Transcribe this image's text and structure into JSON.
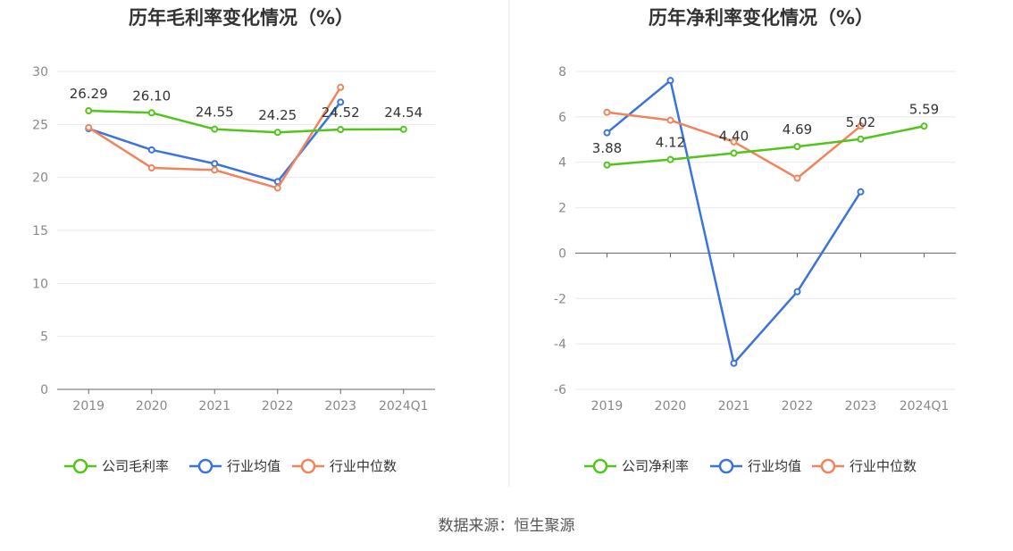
{
  "colors": {
    "company": "#52c41a",
    "industry_avg": "#3b73db",
    "industry_median": "#f0845c",
    "grid": "#e6e9f0",
    "axis": "#666666",
    "tick_text": "#888888",
    "title_text": "#333333",
    "label_text": "#333333"
  },
  "source_text": "数据来源：恒生聚源",
  "chart_data": [
    {
      "type": "line",
      "title": "历年毛利率变化情况（%）",
      "categories": [
        "2019",
        "2020",
        "2021",
        "2022",
        "2023",
        "2024Q1"
      ],
      "ylim": [
        0,
        30
      ],
      "yticks": [
        0,
        5,
        10,
        15,
        20,
        25,
        30
      ],
      "grid": true,
      "legend_position": "bottom",
      "series": [
        {
          "name": "公司毛利率",
          "color_key": "company",
          "labeled": true,
          "values": [
            26.29,
            26.1,
            24.55,
            24.25,
            24.52,
            24.54
          ]
        },
        {
          "name": "行业均值",
          "color_key": "industry_avg",
          "labeled": false,
          "values": [
            24.6,
            22.6,
            21.3,
            19.6,
            27.1,
            null
          ]
        },
        {
          "name": "行业中位数",
          "color_key": "industry_median",
          "labeled": false,
          "values": [
            24.7,
            20.9,
            20.7,
            19.0,
            28.5,
            null
          ]
        }
      ]
    },
    {
      "type": "line",
      "title": "历年净利率变化情况（%）",
      "categories": [
        "2019",
        "2020",
        "2021",
        "2022",
        "2023",
        "2024Q1"
      ],
      "ylim": [
        -6,
        8
      ],
      "yticks": [
        -6,
        -4,
        -2,
        0,
        2,
        4,
        6,
        8
      ],
      "grid": true,
      "legend_position": "bottom",
      "series": [
        {
          "name": "公司净利率",
          "color_key": "company",
          "labeled": true,
          "values": [
            3.88,
            4.12,
            4.4,
            4.69,
            5.02,
            5.59
          ]
        },
        {
          "name": "行业均值",
          "color_key": "industry_avg",
          "labeled": false,
          "values": [
            5.3,
            7.6,
            -4.85,
            -1.7,
            2.7,
            null
          ]
        },
        {
          "name": "行业中位数",
          "color_key": "industry_median",
          "labeled": false,
          "values": [
            6.2,
            5.85,
            4.9,
            3.3,
            5.6,
            null
          ]
        }
      ]
    }
  ]
}
